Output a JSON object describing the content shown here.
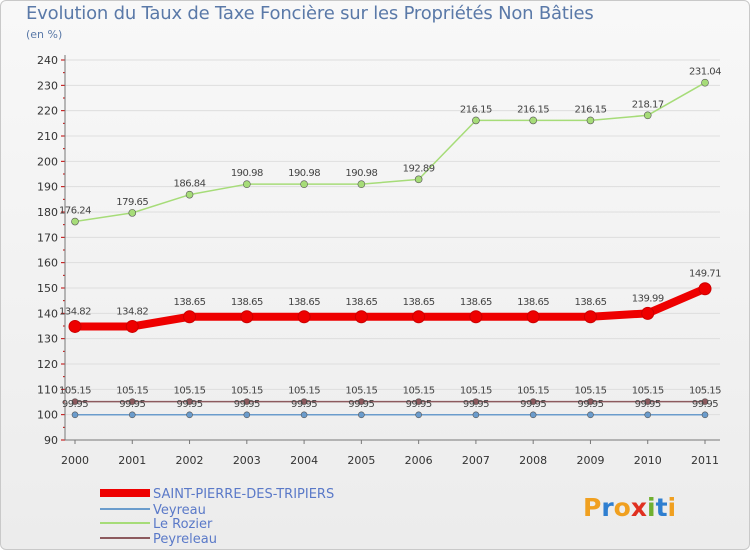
{
  "chart_data": {
    "type": "line",
    "title": "Evolution du Taux de Taxe Foncière sur les Propriétés Non Bâties",
    "subtitle": "(en %)",
    "ylim": [
      90,
      240
    ],
    "yticks": [
      90,
      100,
      110,
      120,
      130,
      140,
      150,
      160,
      170,
      180,
      190,
      200,
      210,
      220,
      230,
      240
    ],
    "categories": [
      "2000",
      "2001",
      "2002",
      "2003",
      "2004",
      "2005",
      "2006",
      "2007",
      "2008",
      "2009",
      "2010",
      "2011"
    ],
    "series": [
      {
        "name": "SAINT-PIERRE-DES-TRIPIERS",
        "color": "#ee0000",
        "values": [
          134.82,
          134.82,
          138.65,
          138.65,
          138.65,
          138.65,
          138.65,
          138.65,
          138.65,
          138.65,
          139.99,
          149.71
        ],
        "labels": [
          "134.82",
          "134.82",
          "138.65",
          "138.65",
          "138.65",
          "138.65",
          "138.65",
          "138.65",
          "138.65",
          "138.65",
          "139.99",
          "149.71"
        ]
      },
      {
        "name": "Veyreau",
        "color": "#6b9ccc",
        "values": [
          99.95,
          99.95,
          99.95,
          99.95,
          99.95,
          99.95,
          99.95,
          99.95,
          99.95,
          99.95,
          99.95,
          99.95
        ],
        "labels": [
          "99.95",
          "99.95",
          "99.95",
          "99.95",
          "99.95",
          "99.95",
          "99.95",
          "99.95",
          "99.95",
          "99.95",
          "99.95",
          "99.95"
        ]
      },
      {
        "name": "Le Rozier",
        "color": "#a6dc78",
        "values": [
          176.24,
          179.65,
          186.84,
          190.98,
          190.98,
          190.98,
          192.89,
          216.15,
          216.15,
          216.15,
          218.17,
          231.04
        ],
        "labels": [
          "176.24",
          "179.65",
          "186.84",
          "190.98",
          "190.98",
          "190.98",
          "192.89",
          "216.15",
          "216.15",
          "216.15",
          "218.17",
          "231.04"
        ]
      },
      {
        "name": "Peyreleau",
        "color": "#8c5a5e",
        "values": [
          105.15,
          105.15,
          105.15,
          105.15,
          105.15,
          105.15,
          105.15,
          105.15,
          105.15,
          105.15,
          105.15,
          105.15
        ],
        "labels": [
          "105.15",
          "105.15",
          "105.15",
          "105.15",
          "105.15",
          "105.15",
          "105.15",
          "105.15",
          "105.15",
          "105.15",
          "105.15",
          "105.15"
        ]
      }
    ]
  },
  "logo": {
    "text": "Proxiti"
  }
}
